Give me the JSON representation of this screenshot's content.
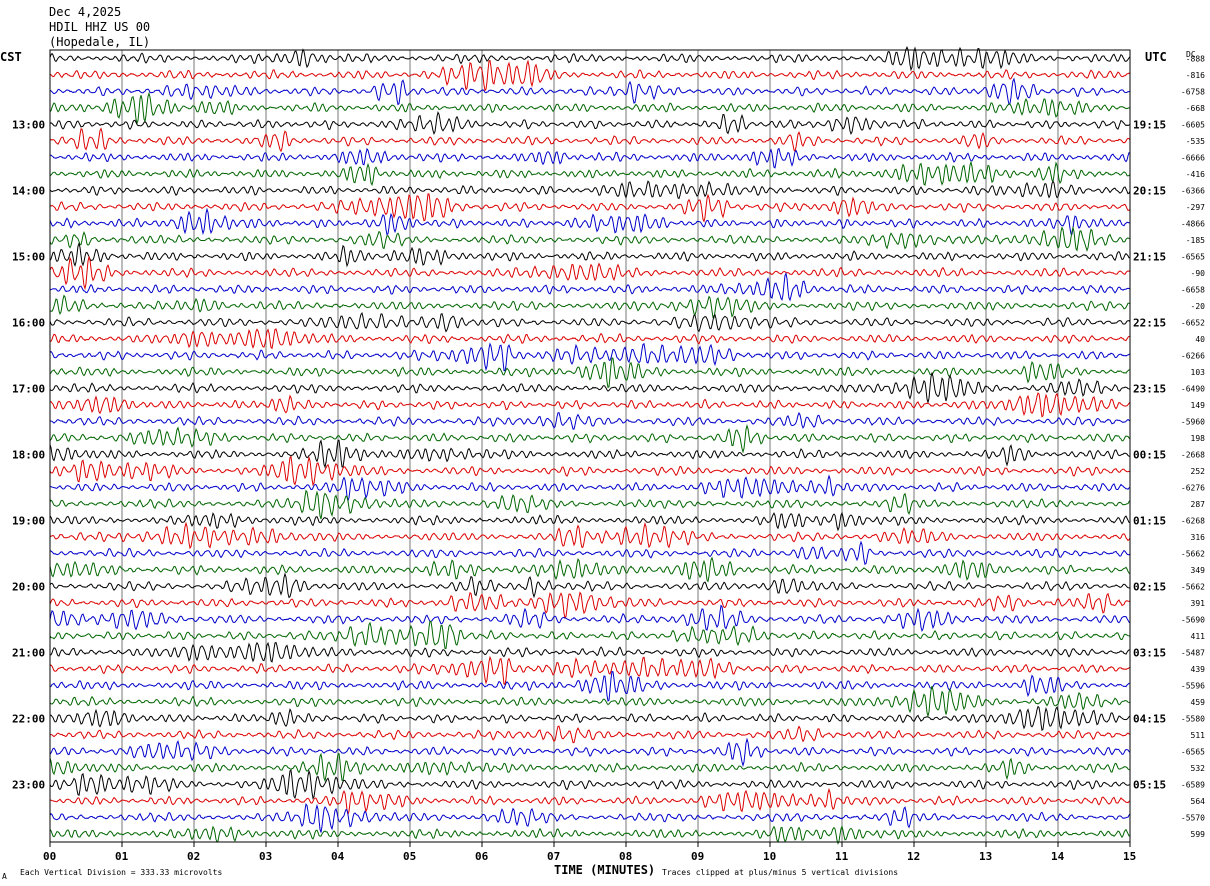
{
  "header": {
    "date": "Dec 4,2025",
    "station": "HDIL HHZ US 00",
    "location": "(Hopedale, IL)"
  },
  "left_axis_title": "CST",
  "right_axis_title": "UTC",
  "dc_title": "DC",
  "footer": {
    "scale_note": "Each Vertical Division =  333.33 microvolts",
    "clip_note": "Traces clipped at plus/minus 5 vertical divisions",
    "corner_mark": "A"
  },
  "chart_data": {
    "type": "line",
    "title": "",
    "xlabel": "TIME (MINUTES)",
    "xlim": [
      0,
      15
    ],
    "x_ticks": [
      "00",
      "01",
      "02",
      "03",
      "04",
      "05",
      "06",
      "07",
      "08",
      "09",
      "10",
      "11",
      "12",
      "13",
      "14",
      "15"
    ],
    "trace_count": 48,
    "minutes_per_trace": 15,
    "trace_colors": [
      "#000000",
      "#dd0000",
      "#0000cc",
      "#006600"
    ],
    "grid": true,
    "left_hour_labels": [
      "13:00",
      "14:00",
      "15:00",
      "16:00",
      "17:00",
      "18:00",
      "19:00",
      "20:00",
      "21:00",
      "22:00",
      "23:00"
    ],
    "right_hour_labels": [
      "19:15",
      "20:15",
      "21:15",
      "22:15",
      "23:15",
      "00:15",
      "01:15",
      "02:15",
      "03:15",
      "04:15",
      "05:15"
    ],
    "dc_offsets": [
      "-888",
      "-816",
      "-6758",
      "-668",
      "-6605",
      "-535",
      "-6666",
      "-416",
      "-6366",
      "-297",
      "-4866",
      "-185",
      "-6565",
      "-90",
      "-6658",
      "-20",
      "-6652",
      "40",
      "-6266",
      "103",
      "-6490",
      "149",
      "-5960",
      "198",
      "-2668",
      "252",
      "-6276",
      "287",
      "-6268",
      "316",
      "-5662",
      "349",
      "-5662",
      "391",
      "-5690",
      "411",
      "-5487",
      "439",
      "-5596",
      "459",
      "-5580",
      "511",
      "-6565",
      "532",
      "-6589",
      "564",
      "-5570",
      "599"
    ]
  }
}
